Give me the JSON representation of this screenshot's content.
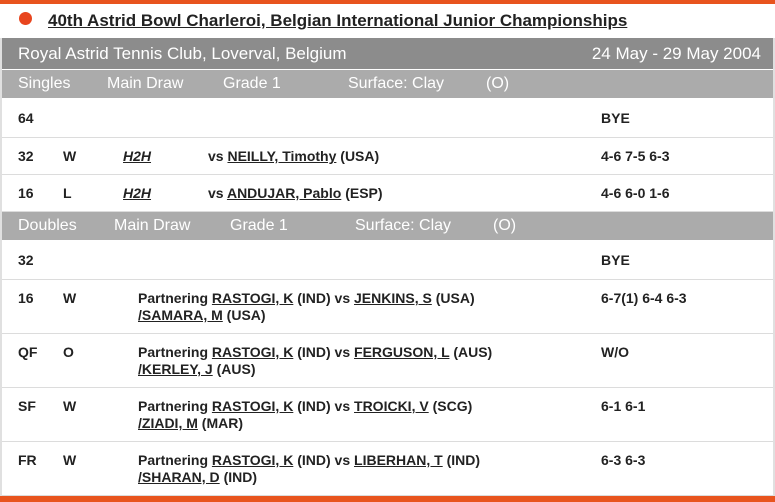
{
  "header": {
    "title": "40th Astrid Bowl Charleroi, Belgian International Junior Championships",
    "venue": "Royal Astrid Tennis Club, Loverval, Belgium",
    "dates": "24 May - 29 May 2004"
  },
  "singles": {
    "labels": [
      "Singles",
      "Main Draw",
      "Grade 1",
      "Surface: Clay",
      "(O)"
    ],
    "rows": [
      {
        "round": "64",
        "score": "BYE"
      },
      {
        "round": "32",
        "result": "W",
        "h2h": "H2H",
        "vs": "vs",
        "opponent": "NEILLY, Timothy",
        "country": "(USA)",
        "score": "4-6 7-5 6-3"
      },
      {
        "round": "16",
        "result": "L",
        "h2h": "H2H",
        "vs": "vs",
        "opponent": "ANDUJAR, Pablo",
        "country": "(ESP)",
        "score": "4-6 6-0 1-6"
      }
    ]
  },
  "doubles": {
    "labels": [
      "Doubles",
      "Main Draw",
      "Grade 1",
      "Surface: Clay",
      "(O)"
    ],
    "rows": [
      {
        "round": "32",
        "score": "BYE"
      },
      {
        "round": "16",
        "result": "W",
        "partnering": "Partnering",
        "partner": "RASTOGI, K",
        "partner_country": "(IND)",
        "vs": "vs",
        "opponent1": "JENKINS, S",
        "country1": "(USA)",
        "opponent2": "/SAMARA, M",
        "country2": "(USA)",
        "score": "6-7(1) 6-4 6-3"
      },
      {
        "round": "QF",
        "result": "O",
        "partnering": "Partnering",
        "partner": "RASTOGI, K",
        "partner_country": "(IND)",
        "vs": "vs",
        "opponent1": "FERGUSON, L",
        "country1": "(AUS)",
        "opponent2": "/KERLEY, J",
        "country2": "(AUS)",
        "score": "W/O"
      },
      {
        "round": "SF",
        "result": "W",
        "partnering": "Partnering",
        "partner": "RASTOGI, K",
        "partner_country": "(IND)",
        "vs": "vs",
        "opponent1": "TROICKI, V",
        "country1": "(SCG)",
        "opponent2": "/ZIADI, M",
        "country2": "(MAR)",
        "score": "6-1 6-1"
      },
      {
        "round": "FR",
        "result": "W",
        "partnering": "Partnering",
        "partner": "RASTOGI, K",
        "partner_country": "(IND)",
        "vs": "vs",
        "opponent1": "LIBERHAN, T",
        "country1": "(IND)",
        "opponent2": "/SHARAN, D",
        "country2": "(IND)",
        "score": "6-3 6-3"
      }
    ]
  }
}
